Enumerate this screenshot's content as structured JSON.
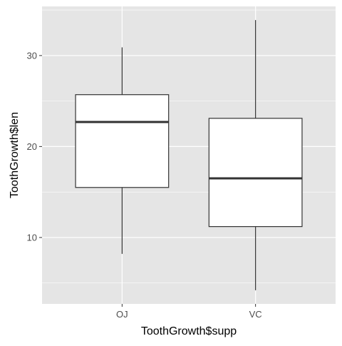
{
  "chart_data": {
    "type": "boxplot",
    "title": "",
    "xlabel": "ToothGrowth$supp",
    "ylabel": "ToothGrowth$len",
    "categories": [
      "OJ",
      "VC"
    ],
    "boxes": [
      {
        "category": "OJ",
        "lower_whisker": 8.2,
        "q1": 15.5,
        "median": 22.7,
        "q3": 25.7,
        "upper_whisker": 30.9
      },
      {
        "category": "VC",
        "lower_whisker": 4.2,
        "q1": 11.2,
        "median": 16.5,
        "q3": 23.1,
        "upper_whisker": 33.9
      }
    ],
    "ylim": [
      2.7,
      35.4
    ],
    "yticks": [
      10,
      20,
      30
    ],
    "ytick_labels": [
      "10",
      "20",
      "30"
    ],
    "grid": true,
    "legend": "none",
    "colors": {
      "panel_background": "#e5e5e5",
      "grid_line": "#ffffff",
      "box_fill": "#ffffff",
      "box_stroke": "#333333",
      "axis_text": "#4d4d4d",
      "axis_title": "#000000"
    }
  }
}
